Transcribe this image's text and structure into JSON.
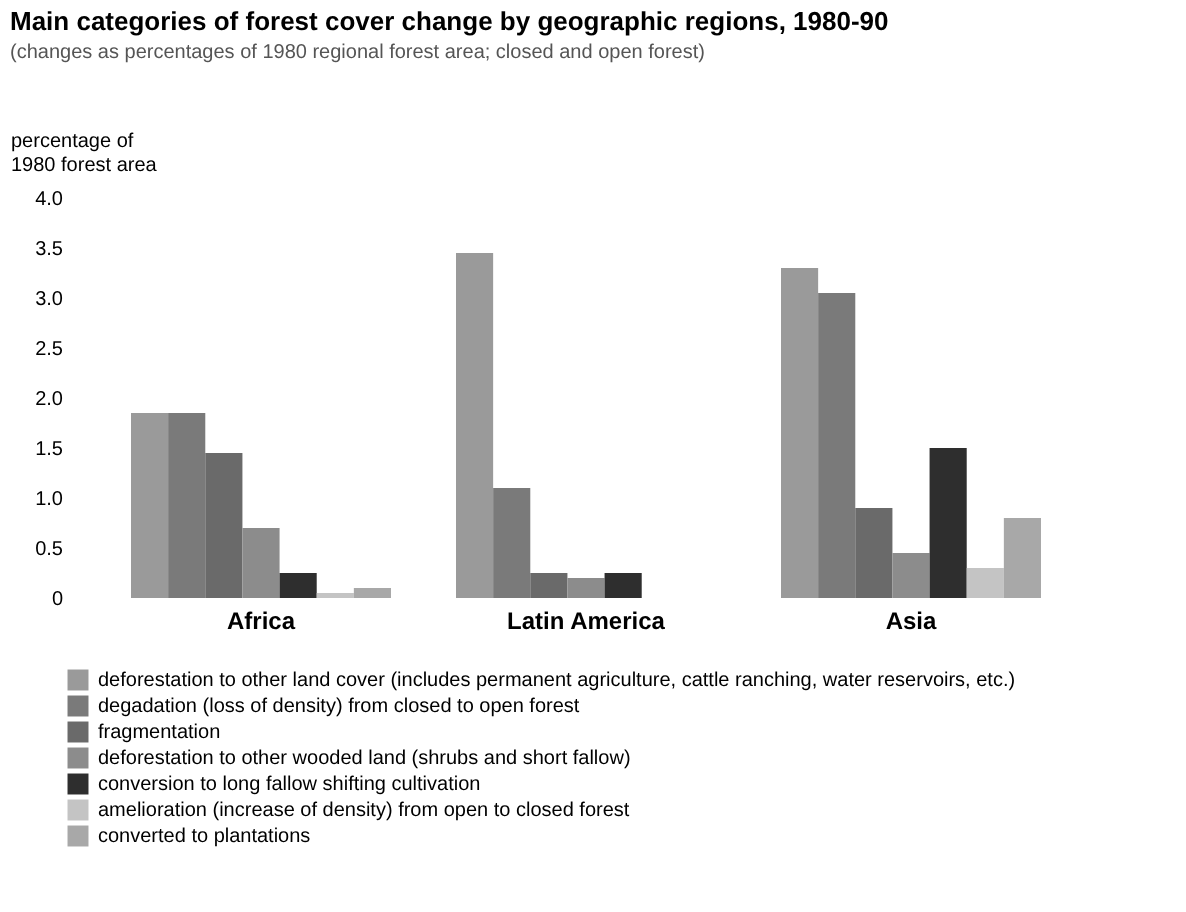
{
  "chart_data": {
    "type": "bar",
    "title": "Main categories of forest cover change by geographic regions, 1980-90",
    "subtitle": "(changes as percentages of 1980 regional forest area; closed and open forest)",
    "ylabel": "percentage of\n1980 forest area",
    "categories": [
      "Africa",
      "Latin America",
      "Asia"
    ],
    "series": [
      {
        "name": "deforestation to other land cover (includes permanent agriculture, cattle ranching, water reservoirs, etc.)",
        "color": "#9a9a9a",
        "values": [
          1.85,
          3.45,
          3.3
        ]
      },
      {
        "name": "degadation (loss of density) from closed to open forest",
        "color": "#7a7a7a",
        "values": [
          1.85,
          1.1,
          3.05
        ]
      },
      {
        "name": "fragmentation",
        "color": "#6a6a6a",
        "values": [
          1.45,
          0.25,
          0.9
        ]
      },
      {
        "name": "deforestation to other wooded land (shrubs and short fallow)",
        "color": "#8c8c8c",
        "values": [
          0.7,
          0.2,
          0.45
        ]
      },
      {
        "name": "conversion to long fallow shifting cultivation",
        "color": "#2e2e2e",
        "values": [
          0.25,
          0.25,
          1.5
        ]
      },
      {
        "name": "amelioration (increase of density) from open to closed forest",
        "color": "#c4c4c4",
        "values": [
          0.05,
          null,
          0.3
        ]
      },
      {
        "name": "converted to plantations",
        "color": "#a8a8a8",
        "values": [
          0.1,
          0.0,
          0.8
        ]
      }
    ],
    "ylim": [
      0,
      4
    ],
    "yticks": [
      0,
      0.5,
      {
        "value": 1,
        "label": "1.0"
      },
      1.5,
      {
        "value": 2,
        "label": "2.0"
      },
      2.5,
      {
        "value": 3,
        "label": "3.0"
      },
      3.5,
      {
        "value": 4,
        "label": "4.0"
      }
    ],
    "grid": false,
    "legend": "bottom"
  }
}
